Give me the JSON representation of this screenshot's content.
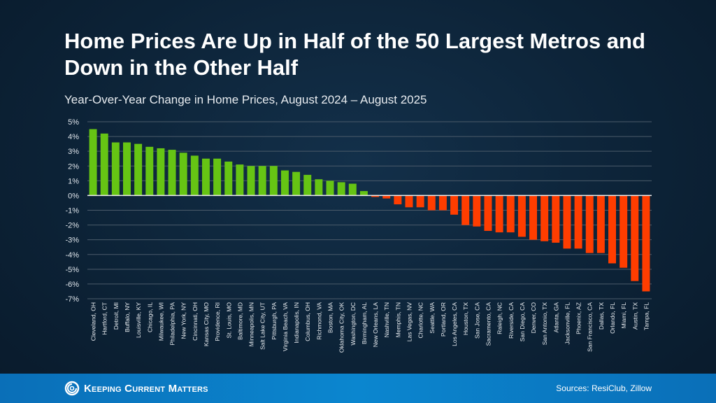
{
  "header": {
    "title": "Home Prices Are Up in Half of the 50 Largest Metros and Down in the Other Half",
    "subtitle": "Year-Over-Year Change in Home Prices, August 2024 – August 2025"
  },
  "footer": {
    "logo_text": "Keeping Current Matters",
    "source": "Sources: ResiClub, Zillow"
  },
  "colors": {
    "positive": "#66c414",
    "negative": "#ff3d00",
    "background": "#0c2236",
    "footer": "#0b7fc6"
  },
  "chart_data": {
    "type": "bar",
    "title": "Home Prices Are Up in Half of the 50 Largest Metros and Down in the Other Half",
    "subtitle": "Year-Over-Year Change in Home Prices, August 2024 – August 2025",
    "xlabel": "",
    "ylabel": "",
    "ylim": [
      -7,
      5
    ],
    "yticks": [
      "5%",
      "4%",
      "3%",
      "2%",
      "1%",
      "0%",
      "-1%",
      "-2%",
      "-3%",
      "-4%",
      "-5%",
      "-6%",
      "-7%"
    ],
    "ytick_values": [
      5,
      4,
      3,
      2,
      1,
      0,
      -1,
      -2,
      -3,
      -4,
      -5,
      -6,
      -7
    ],
    "grid": true,
    "legend": "none",
    "categories": [
      "Cleveland, OH",
      "Hartford, CT",
      "Detroit, MI",
      "Buffalo, NY",
      "Louisville, KY",
      "Chicago, IL",
      "Milwaukee, WI",
      "Philadelphia, PA",
      "New York, NY",
      "Cincinnati, OH",
      "Kansas City, MO",
      "Providence, RI",
      "St. Louis, MO",
      "Baltimore, MD",
      "Minneapolis, MN",
      "Salt Lake City, UT",
      "Pittsburgh, PA",
      "Virginia Beach, VA",
      "Indianapolis, IN",
      "Columbus, OH",
      "Richmond, VA",
      "Boston, MA",
      "Oklahoma City, OK",
      "Washington, DC",
      "Birmingham, AL",
      "New Orleans, LA",
      "Nashville, TN",
      "Memphis, TN",
      "Las Vegas, NV",
      "Charlotte, NC",
      "Seattle, WA",
      "Portland, OR",
      "Los Angeles, CA",
      "Houston, TX",
      "San Jose, CA",
      "Sacramento, CA",
      "Raleigh, NC",
      "Riverside, CA",
      "San Diego, CA",
      "Denver, CO",
      "San Antonio, TX",
      "Atlanta, GA",
      "Jacksonville, FL",
      "Phoenix, AZ",
      "San Francisco, CA",
      "Dallas, TX",
      "Orlando, FL",
      "Miami, FL",
      "Austin, TX",
      "Tampa, FL"
    ],
    "values": [
      4.5,
      4.2,
      3.6,
      3.6,
      3.5,
      3.3,
      3.2,
      3.1,
      2.9,
      2.7,
      2.5,
      2.5,
      2.3,
      2.1,
      2.0,
      2.0,
      2.0,
      1.7,
      1.6,
      1.4,
      1.1,
      1.0,
      0.9,
      0.8,
      0.3,
      -0.1,
      -0.2,
      -0.6,
      -0.8,
      -0.8,
      -1.0,
      -1.0,
      -1.3,
      -2.0,
      -2.1,
      -2.4,
      -2.5,
      -2.5,
      -2.8,
      -3.0,
      -3.1,
      -3.2,
      -3.6,
      -3.6,
      -3.9,
      -3.9,
      -4.6,
      -4.9,
      -5.8,
      -6.5
    ]
  }
}
